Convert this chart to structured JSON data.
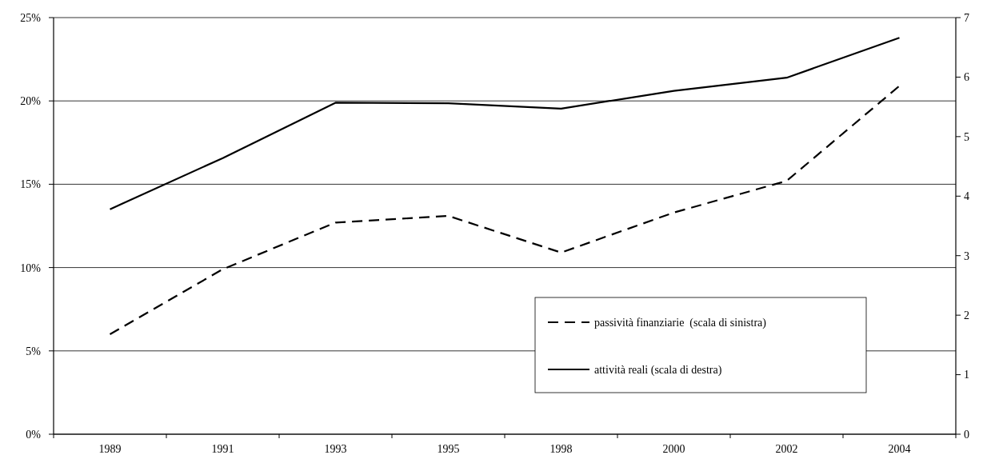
{
  "chart_data": {
    "type": "line",
    "categories": [
      "1989",
      "1991",
      "1993",
      "1995",
      "1998",
      "2000",
      "2002",
      "2004"
    ],
    "series": [
      {
        "name": "passività finanziarie  (scala di sinistra)",
        "color": "#000000",
        "line_style": "dashed",
        "values": [
          6.0,
          9.9,
          12.7,
          13.1,
          10.9,
          13.3,
          15.2,
          20.9
        ]
      },
      {
        "name": "attività reali (scala di destra)",
        "color": "#000000",
        "line_style": "solid",
        "axis": "y2",
        "values": [
          3.78,
          4.64,
          5.57,
          5.56,
          5.47,
          5.77,
          5.99,
          6.66
        ]
      }
    ],
    "ylim": [
      0,
      25
    ],
    "yticks": [
      {
        "value": 0,
        "label": "0%"
      },
      {
        "value": 5,
        "label": "5%"
      },
      {
        "value": 10,
        "label": "10%"
      },
      {
        "value": 15,
        "label": "15%"
      },
      {
        "value": 20,
        "label": "20%"
      },
      {
        "value": 25,
        "label": "25%"
      }
    ],
    "y2lim": [
      0,
      7
    ],
    "y2ticks": [
      0,
      1,
      2,
      3,
      4,
      5,
      6,
      7
    ],
    "grid": "y",
    "legend": "bottom right",
    "marker": "none"
  }
}
